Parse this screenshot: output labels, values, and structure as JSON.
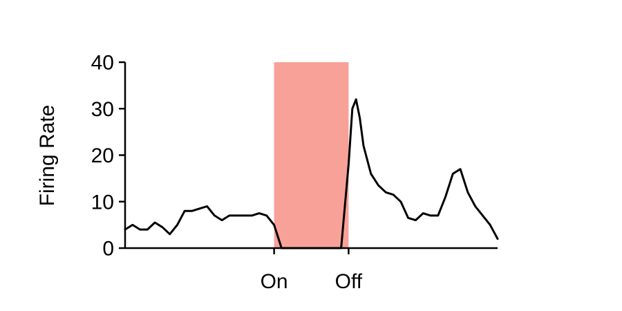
{
  "chart_data": {
    "type": "line",
    "title": "",
    "xlabel": "",
    "ylabel": "Firing Rate",
    "ylim": [
      0,
      40
    ],
    "xlim": [
      0,
      100
    ],
    "yticks": [
      0,
      10,
      20,
      30,
      40
    ],
    "xticks": [
      {
        "value": 40,
        "label": "On"
      },
      {
        "value": 60,
        "label": "Off"
      }
    ],
    "stimulus_window": {
      "start": 40,
      "end": 60,
      "color": "#F8A198"
    },
    "grid": false,
    "series": [
      {
        "color": "#000000",
        "x": [
          0,
          2,
          4,
          6,
          8,
          10,
          12,
          14,
          16,
          18,
          20,
          22,
          24,
          26,
          28,
          30,
          32,
          34,
          36,
          38,
          40,
          42,
          44,
          46,
          48,
          50,
          52,
          54,
          56,
          58,
          60,
          61,
          62,
          63,
          64,
          66,
          68,
          70,
          72,
          74,
          76,
          78,
          80,
          82,
          84,
          86,
          88,
          90,
          92,
          94,
          96,
          98,
          100
        ],
        "y": [
          4,
          5,
          4,
          4,
          5.5,
          4.5,
          3,
          5,
          8,
          8,
          8.5,
          9,
          7,
          6,
          7,
          7,
          7,
          7,
          7.5,
          7,
          5,
          0,
          0,
          0,
          0,
          0,
          0,
          0,
          0,
          0,
          18,
          30,
          32,
          28,
          22,
          16,
          13.5,
          12,
          11.5,
          10,
          6.5,
          6,
          7.5,
          7,
          7,
          11,
          16,
          17,
          12,
          9,
          7,
          5,
          2
        ]
      }
    ]
  }
}
